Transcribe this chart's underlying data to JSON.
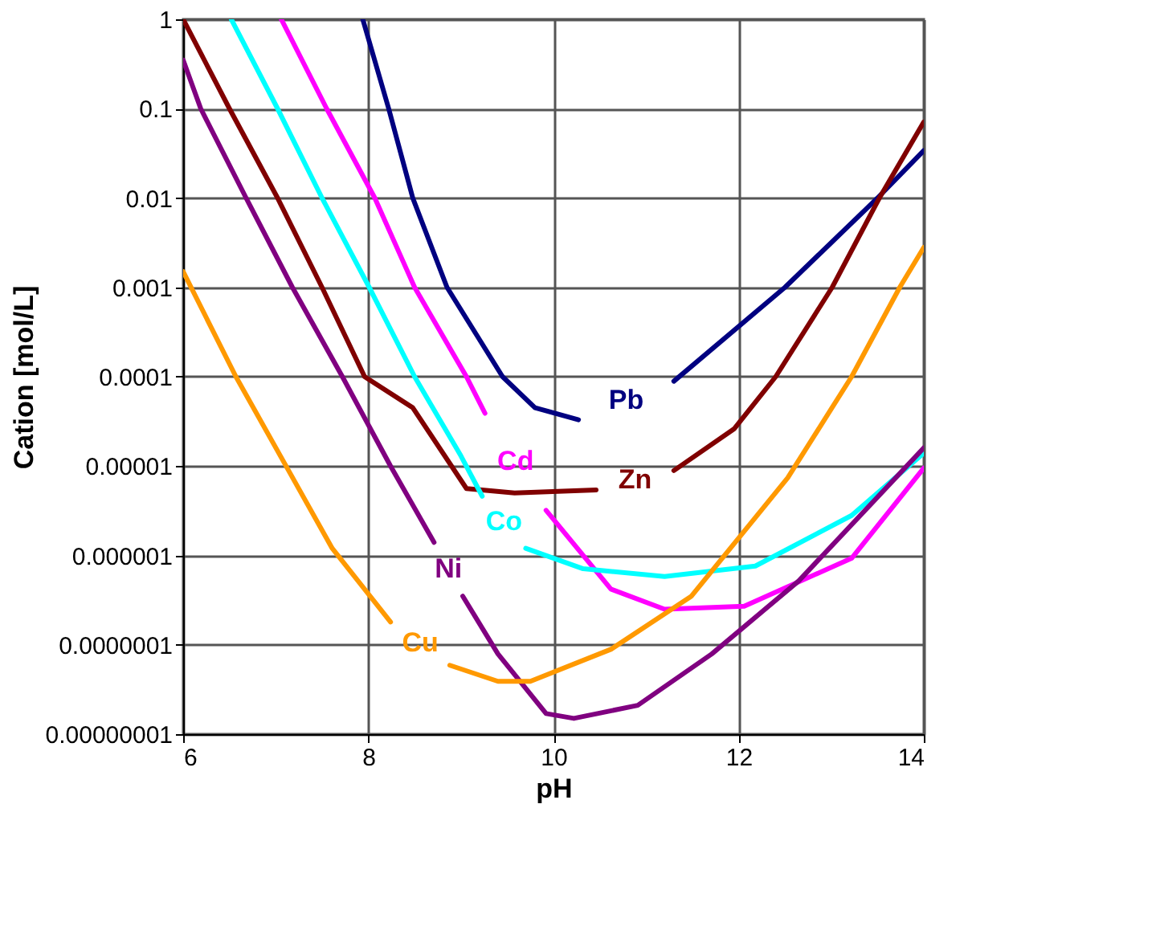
{
  "chart_data": {
    "type": "line",
    "xlabel": "pH",
    "ylabel": "Cation [mol/L]",
    "log": "y",
    "grid": true,
    "legend": false,
    "marker": "none",
    "line_style": "solid",
    "xlim": [
      6,
      14
    ],
    "xticks": [
      {
        "value": 6,
        "label": "6"
      },
      {
        "value": 8,
        "label": "8"
      },
      {
        "value": 10,
        "label": "10"
      },
      {
        "value": 12,
        "label": "12"
      },
      {
        "value": 14,
        "label": "14"
      }
    ],
    "ylim": [
      1e-08,
      1
    ],
    "yticks": [
      {
        "value": 1,
        "label": "1"
      },
      {
        "value": 0.1,
        "label": "0.1"
      },
      {
        "value": 0.01,
        "label": "0.01"
      },
      {
        "value": 0.001,
        "label": "0.001"
      },
      {
        "value": 0.0001,
        "label": "0.0001"
      },
      {
        "value": 1e-05,
        "label": "0.00001"
      },
      {
        "value": 1e-06,
        "label": "0.000001"
      },
      {
        "value": 1e-07,
        "label": "0.0000001"
      },
      {
        "value": 1e-08,
        "label": "0.00000001"
      }
    ],
    "series": [
      {
        "name": "Pb",
        "color": "#000080",
        "x": [
          7.94,
          8.22,
          8.48,
          8.85,
          9.45,
          9.8,
          10.27,
          10.8,
          11.3,
          12.5,
          13.5,
          14
        ],
        "values": [
          1,
          0.1,
          0.01,
          0.001,
          0.0001,
          4.5e-05,
          3.3e-05,
          null,
          8.9e-05,
          0.001,
          0.01,
          0.034
        ]
      },
      {
        "name": "Zn",
        "color": "#800000",
        "x": [
          6,
          6.5,
          7.02,
          7.5,
          7.96,
          8.48,
          9.06,
          9.58,
          10.46,
          10.88,
          11.3,
          11.95,
          12.4,
          13.01,
          13.52,
          14
        ],
        "values": [
          1,
          0.1,
          0.01,
          0.001,
          0.0001,
          4.5e-05,
          5.6e-06,
          5e-06,
          5.4e-06,
          null,
          8.9e-06,
          2.6e-05,
          0.0001,
          0.001,
          0.01,
          0.071
        ]
      },
      {
        "name": "Cd",
        "color": "#ff00ff",
        "x": [
          7.06,
          7.55,
          8.07,
          8.5,
          9.06,
          9.26,
          9.59,
          9.92,
          10.62,
          11.2,
          12.06,
          13.22,
          14
        ],
        "values": [
          1,
          0.1,
          0.01,
          0.001,
          0.0001,
          3.9e-05,
          null,
          3.2e-06,
          4.2e-07,
          2.5e-07,
          2.7e-07,
          9.3e-07,
          9.5e-06
        ]
      },
      {
        "name": "Co",
        "color": "#00ffff",
        "x": [
          6.52,
          7.02,
          7.5,
          8.01,
          8.5,
          9.0,
          9.23,
          9.47,
          9.7,
          10.32,
          11.2,
          12.18,
          13.22,
          14
        ],
        "values": [
          1,
          0.1,
          0.01,
          0.001,
          0.0001,
          1.3e-05,
          4.6e-06,
          null,
          1.2e-06,
          7.1e-07,
          5.8e-07,
          7.6e-07,
          2.8e-06,
          1.4e-05
        ]
      },
      {
        "name": "Ni",
        "color": "#800080",
        "x": [
          6.0,
          6.19,
          6.68,
          7.18,
          7.72,
          8.24,
          8.71,
          8.87,
          9.02,
          9.4,
          9.92,
          10.22,
          10.91,
          11.71,
          12.65,
          14
        ],
        "values": [
          0.35,
          0.1,
          0.01,
          0.001,
          0.0001,
          1e-05,
          1.4e-06,
          null,
          3.5e-07,
          7.9e-08,
          1.7e-08,
          1.5e-08,
          2.1e-08,
          7.9e-08,
          5.2e-07,
          1.6e-05
        ]
      },
      {
        "name": "Cu",
        "color": "#ff9900",
        "x": [
          6,
          6.57,
          7.15,
          7.61,
          8.24,
          8.56,
          8.88,
          9.4,
          9.75,
          10.62,
          11.49,
          12.53,
          13.22,
          13.74,
          14
        ],
        "values": [
          0.0015,
          0.0001,
          8.5e-06,
          1.2e-06,
          1.8e-07,
          null,
          5.9e-08,
          3.9e-08,
          3.9e-08,
          8.9e-08,
          3.5e-07,
          7.4e-06,
          0.0001,
          0.001,
          0.0028
        ]
      }
    ]
  }
}
